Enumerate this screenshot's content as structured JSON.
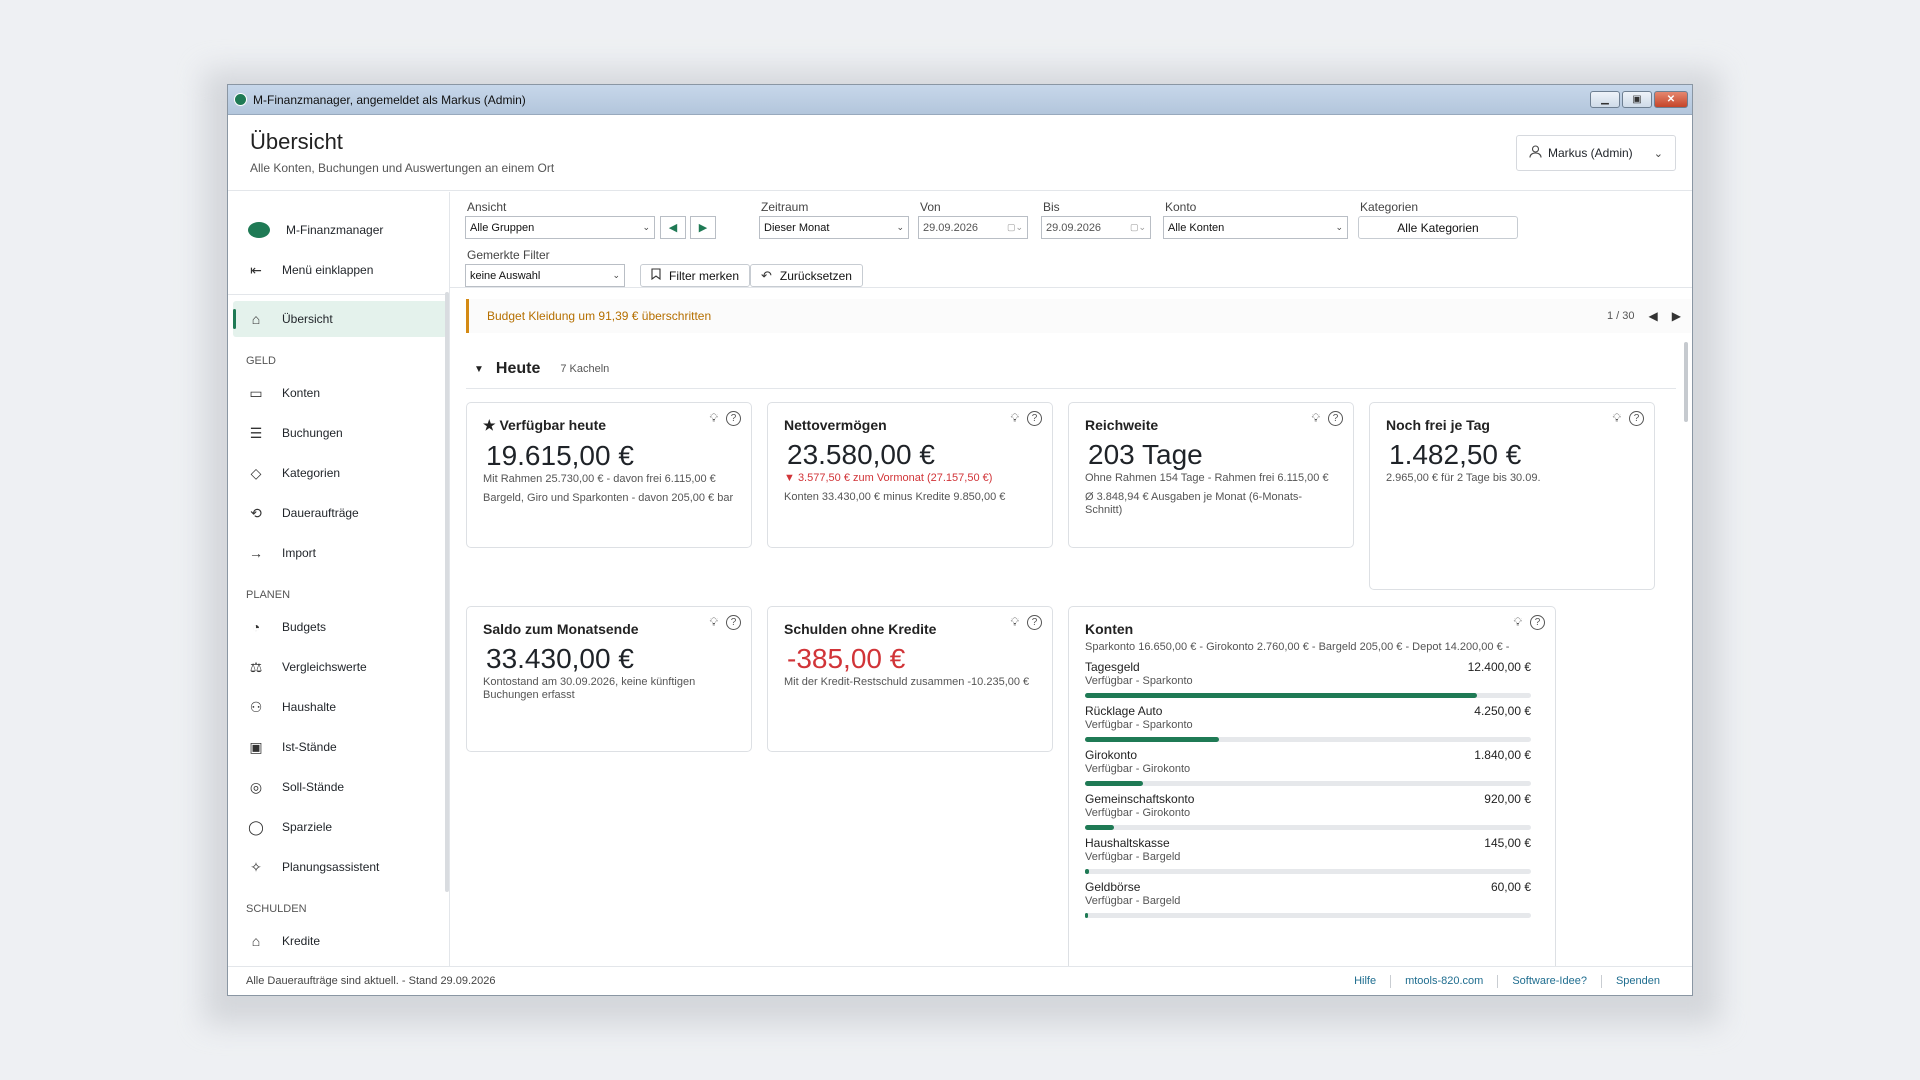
{
  "window": {
    "title": "M-Finanzmanager, angemeldet als Markus (Admin)"
  },
  "header": {
    "title": "Übersicht",
    "subtitle": "Alle Konten, Buchungen und Auswertungen an einem Ort",
    "user": "Markus (Admin)"
  },
  "sidebar": {
    "brand": "M-Finanzmanager",
    "collapse": "Menü einklappen",
    "active": "Übersicht",
    "sections": [
      {
        "title": "GELD",
        "items": [
          "Konten",
          "Buchungen",
          "Kategorien",
          "Daueraufträge",
          "Import"
        ]
      },
      {
        "title": "PLANEN",
        "items": [
          "Budgets",
          "Vergleichswerte",
          "Haushalte",
          "Ist-Stände",
          "Soll-Stände",
          "Sparziele",
          "Planungsassistent"
        ]
      },
      {
        "title": "SCHULDEN",
        "items": [
          "Kredite"
        ]
      }
    ]
  },
  "filters": {
    "ansicht_label": "Ansicht",
    "ansicht_value": "Alle Gruppen",
    "zeitraum_label": "Zeitraum",
    "zeitraum_value": "Dieser Monat",
    "von_label": "Von",
    "von_value": "29.09.2026",
    "bis_label": "Bis",
    "bis_value": "29.09.2026",
    "konto_label": "Konto",
    "konto_value": "Alle Konten",
    "kategorien_label": "Kategorien",
    "kategorien_value": "Alle Kategorien",
    "gemerkte_label": "Gemerkte Filter",
    "gemerkte_value": "keine Auswahl",
    "filter_merken": "Filter merken",
    "zuruecksetzen": "Zurücksetzen"
  },
  "alert": {
    "text": "Budget Kleidung um 91,39 € überschritten",
    "pager": "1 / 30",
    "color": "#d48a14"
  },
  "section": {
    "title": "Heute",
    "count": "7 Kacheln"
  },
  "tiles": {
    "verfuegbar": {
      "title": "★ Verfügbar heute",
      "value": "19.615,00 €",
      "line1": "Mit Rahmen 25.730,00 € - davon frei 6.115,00 €",
      "line2": "Bargeld, Giro und Sparkonten - davon 205,00 € bar"
    },
    "netto": {
      "title": "Nettovermögen",
      "value": "23.580,00 €",
      "line1": "▼ 3.577,50 € zum Vormonat (27.157,50 €)",
      "line2": "Konten 33.430,00 € minus Kredite 9.850,00 €"
    },
    "reichweite": {
      "title": "Reichweite",
      "value": "203 Tage",
      "line1": "Ohne Rahmen 154 Tage - Rahmen frei 6.115,00 €",
      "line2": "Ø 3.848,94 € Ausgaben je Monat (6-Monats-Schnitt)"
    },
    "frei": {
      "title": "Noch frei je Tag",
      "value": "1.482,50 €",
      "line1": "2.965,00 € für 2 Tage bis 30.09."
    },
    "saldo": {
      "title": "Saldo zum Monatsende",
      "value": "33.430,00 €",
      "line1": "Kontostand am 30.09.2026, keine künftigen Buchungen erfasst"
    },
    "schulden": {
      "title": "Schulden ohne Kredite",
      "value": "-385,00 €",
      "line1": "Mit der Kredit-Restschuld zusammen -10.235,00 €"
    },
    "konten": {
      "title": "Konten",
      "summary": "Sparkonto 16.650,00 € - Girokonto 2.760,00 € - Bargeld 205,00 € - Depot 14.200,00 € -",
      "rows": [
        {
          "name": "Tagesgeld",
          "sub": "Verfügbar - Sparkonto",
          "value": "12.400,00 €",
          "fill": 0.88
        },
        {
          "name": "Rücklage Auto",
          "sub": "Verfügbar - Sparkonto",
          "value": "4.250,00 €",
          "fill": 0.3
        },
        {
          "name": "Girokonto",
          "sub": "Verfügbar - Girokonto",
          "value": "1.840,00 €",
          "fill": 0.13
        },
        {
          "name": "Gemeinschaftskonto",
          "sub": "Verfügbar - Girokonto",
          "value": "920,00 €",
          "fill": 0.065
        },
        {
          "name": "Haushaltskasse",
          "sub": "Verfügbar - Bargeld",
          "value": "145,00 €",
          "fill": 0.01
        },
        {
          "name": "Geldbörse",
          "sub": "Verfügbar - Bargeld",
          "value": "60,00 €",
          "fill": 0.005
        }
      ]
    }
  },
  "statusbar": {
    "text": "Alle Daueraufträge sind aktuell.  -  Stand 29.09.2026",
    "links": [
      "Hilfe",
      "mtools-820.com",
      "Software-Idee?",
      "Spenden"
    ]
  },
  "colors": {
    "accent": "#1f7a55",
    "negative": "#d13438",
    "warning": "#d48a14"
  }
}
